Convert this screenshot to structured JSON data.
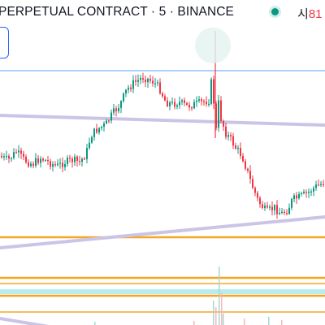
{
  "header": {
    "title": "PERPETUAL CONTRACT · 5 · BINANCE",
    "status_color": "#089981",
    "ohlc_label": "시",
    "ohlc_value": "81"
  },
  "colors": {
    "up": "#089981",
    "down": "#f23645",
    "orange_line": "#f5a623",
    "blue_line": "#90c2f5",
    "lavender_line": "#cbc4e6",
    "cyan_band": "#b8ecee"
  },
  "chart_data": {
    "type": "candlestick",
    "symbol": "PERPETUAL CONTRACT",
    "interval": "5",
    "exchange": "BINANCE",
    "y_axis_visible": false,
    "x_axis_visible": false,
    "grid": false,
    "price_path_shape": [
      [
        0,
        0.38
      ],
      [
        12,
        0.4
      ],
      [
        22,
        0.36
      ],
      [
        32,
        0.4
      ],
      [
        42,
        0.42
      ],
      [
        52,
        0.39
      ],
      [
        62,
        0.41
      ],
      [
        72,
        0.43
      ],
      [
        82,
        0.41
      ],
      [
        92,
        0.4
      ],
      [
        100,
        0.41
      ],
      [
        108,
        0.37
      ],
      [
        114,
        0.28
      ],
      [
        122,
        0.25
      ],
      [
        132,
        0.23
      ],
      [
        140,
        0.18
      ],
      [
        150,
        0.13
      ],
      [
        158,
        0.06
      ],
      [
        166,
        0.03
      ],
      [
        178,
        0.0
      ],
      [
        190,
        0.02
      ],
      [
        198,
        0.05
      ],
      [
        206,
        0.12
      ],
      [
        214,
        0.13
      ],
      [
        222,
        0.12
      ],
      [
        232,
        0.14
      ],
      [
        242,
        0.13
      ],
      [
        252,
        0.12
      ],
      [
        260,
        0.11
      ],
      [
        265,
        -0.1
      ],
      [
        270,
        0.1
      ],
      [
        274,
        0.2
      ],
      [
        280,
        0.27
      ],
      [
        286,
        0.3
      ],
      [
        292,
        0.34
      ],
      [
        300,
        0.38
      ],
      [
        306,
        0.45
      ],
      [
        312,
        0.52
      ],
      [
        320,
        0.6
      ],
      [
        330,
        0.65
      ],
      [
        340,
        0.63
      ],
      [
        348,
        0.66
      ],
      [
        356,
        0.64
      ],
      [
        362,
        0.59
      ],
      [
        370,
        0.58
      ],
      [
        380,
        0.56
      ],
      [
        390,
        0.53
      ],
      [
        400,
        0.51
      ]
    ],
    "horizontal_levels": [
      {
        "color": "orange",
        "thickness": "thick"
      },
      {
        "color": "orange",
        "thickness": "thick"
      },
      {
        "color": "orange",
        "thickness": "thin"
      },
      {
        "color": "orange",
        "thickness": "thick"
      },
      {
        "color": "orange",
        "thickness": "thin"
      },
      {
        "color": "blue",
        "thickness": "thin"
      },
      {
        "color": "cyan",
        "thickness": "band"
      }
    ],
    "trend_lines": [
      {
        "color": "lavender",
        "direction": "down"
      },
      {
        "color": "lavender",
        "direction": "up"
      },
      {
        "color": "lavender",
        "direction": "down"
      }
    ]
  }
}
